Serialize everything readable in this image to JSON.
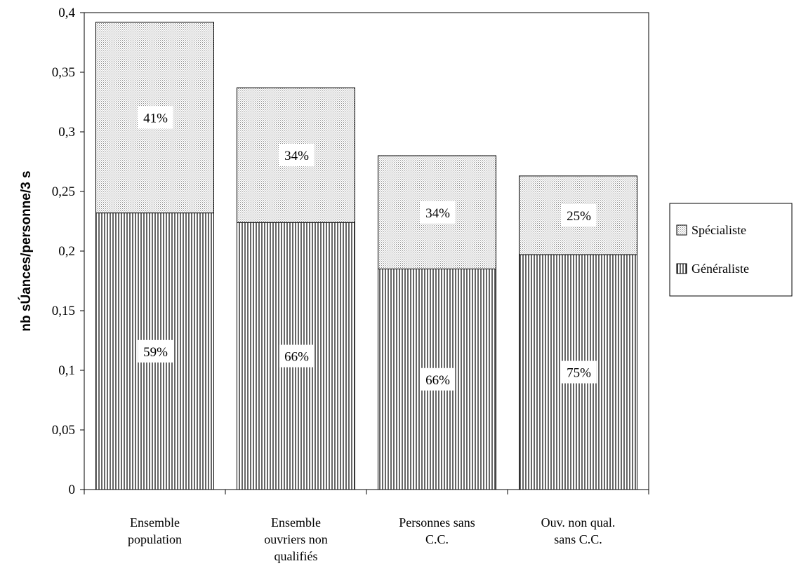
{
  "chart_data": {
    "type": "bar",
    "stacked": true,
    "categories": [
      [
        "Ensemble",
        "population"
      ],
      [
        "Ensemble",
        "ouvriers non",
        "qualifiés"
      ],
      [
        "Personnes sans",
        "C.C."
      ],
      [
        "Ouv. non qual.",
        "sans C.C."
      ]
    ],
    "series": [
      {
        "name": "Généraliste",
        "values": [
          0.232,
          0.224,
          0.185,
          0.197
        ],
        "labels": [
          "59%",
          "66%",
          "66%",
          "75%"
        ],
        "pattern": "vertical-lines"
      },
      {
        "name": "Spécialiste",
        "values": [
          0.16,
          0.113,
          0.095,
          0.066
        ],
        "labels": [
          "41%",
          "34%",
          "34%",
          "25%"
        ],
        "pattern": "dots"
      }
    ],
    "ylabel": "nb sÚances/personne/3 s",
    "xlabel": "",
    "ylim": [
      0,
      0.4
    ],
    "yticks": [
      "0",
      "0,05",
      "0,1",
      "0,15",
      "0,2",
      "0,25",
      "0,3",
      "0,35",
      "0,4"
    ],
    "legend": {
      "position": "right",
      "order": [
        "Spécialiste",
        "Généraliste"
      ]
    },
    "grid": false
  }
}
